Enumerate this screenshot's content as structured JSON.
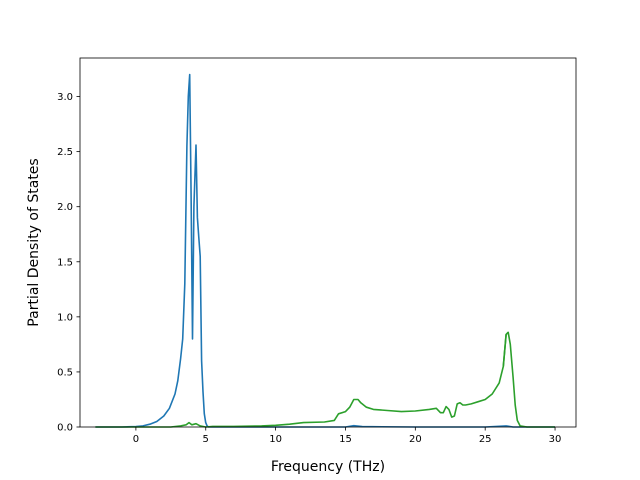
{
  "chart_data": {
    "type": "line",
    "title": "",
    "xlabel": "Frequency (THz)",
    "ylabel": "Partial Density of States",
    "xlim": [
      -4.0,
      31.5
    ],
    "ylim": [
      0.0,
      3.35
    ],
    "xticks": [
      0,
      5,
      10,
      15,
      20,
      25,
      30
    ],
    "xtick_labels": [
      "0",
      "5",
      "10",
      "15",
      "20",
      "25",
      "30"
    ],
    "yticks": [
      0.0,
      0.5,
      1.0,
      1.5,
      2.0,
      2.5,
      3.0
    ],
    "ytick_labels": [
      "0.0",
      "0.5",
      "1.0",
      "1.5",
      "2.0",
      "2.5",
      "3.0"
    ],
    "grid": false,
    "legend": "none",
    "series": [
      {
        "color": "#1f77b4",
        "x": [
          -2.9,
          -1.0,
          0.0,
          0.5,
          1.0,
          1.5,
          2.0,
          2.4,
          2.8,
          3.0,
          3.2,
          3.35,
          3.5,
          3.65,
          3.75,
          3.85,
          3.95,
          4.05,
          4.15,
          4.3,
          4.4,
          4.5,
          4.6,
          4.7,
          4.8,
          4.9,
          5.0,
          5.1,
          5.2,
          5.5,
          6.0,
          10.0,
          15.0,
          15.6,
          16.2,
          20.0,
          25.0,
          26.5,
          27.0,
          30.0
        ],
        "values": [
          0.0,
          0.0,
          0.004,
          0.01,
          0.025,
          0.05,
          0.1,
          0.17,
          0.3,
          0.42,
          0.62,
          0.8,
          1.3,
          2.55,
          3.0,
          3.2,
          2.1,
          0.8,
          2.0,
          2.56,
          1.9,
          1.72,
          1.55,
          0.6,
          0.32,
          0.12,
          0.04,
          0.01,
          0.0,
          0.0,
          0.0,
          0.0,
          0.0,
          0.012,
          0.004,
          0.0,
          0.0,
          0.01,
          0.0,
          0.0
        ]
      },
      {
        "color": "#2ca02c",
        "x": [
          -2.9,
          0.0,
          2.5,
          3.2,
          3.6,
          3.8,
          4.0,
          4.3,
          4.6,
          5.0,
          5.5,
          7.0,
          9.0,
          10.0,
          11.0,
          12.0,
          13.5,
          14.2,
          14.5,
          15.0,
          15.3,
          15.6,
          15.9,
          16.1,
          16.5,
          17.0,
          18.0,
          19.0,
          20.0,
          21.0,
          21.5,
          21.8,
          22.0,
          22.2,
          22.4,
          22.6,
          22.8,
          23.0,
          23.2,
          23.4,
          23.6,
          24.0,
          24.5,
          25.0,
          25.5,
          26.0,
          26.3,
          26.5,
          26.65,
          26.8,
          27.0,
          27.15,
          27.3,
          27.5,
          28.0,
          30.0
        ],
        "values": [
          0.0,
          0.0,
          0.0,
          0.01,
          0.02,
          0.04,
          0.02,
          0.03,
          0.01,
          0.0,
          0.005,
          0.005,
          0.01,
          0.015,
          0.025,
          0.04,
          0.045,
          0.06,
          0.12,
          0.14,
          0.18,
          0.25,
          0.25,
          0.22,
          0.18,
          0.16,
          0.15,
          0.14,
          0.145,
          0.16,
          0.17,
          0.13,
          0.13,
          0.185,
          0.16,
          0.09,
          0.1,
          0.21,
          0.22,
          0.2,
          0.2,
          0.21,
          0.23,
          0.25,
          0.3,
          0.4,
          0.55,
          0.84,
          0.86,
          0.75,
          0.45,
          0.2,
          0.06,
          0.01,
          0.0,
          0.0
        ]
      },
      {
        "color": "#2ca02c",
        "x": [
          26.3,
          26.5,
          26.65
        ],
        "values": [
          0.55,
          0.84,
          0.86
        ]
      }
    ]
  }
}
